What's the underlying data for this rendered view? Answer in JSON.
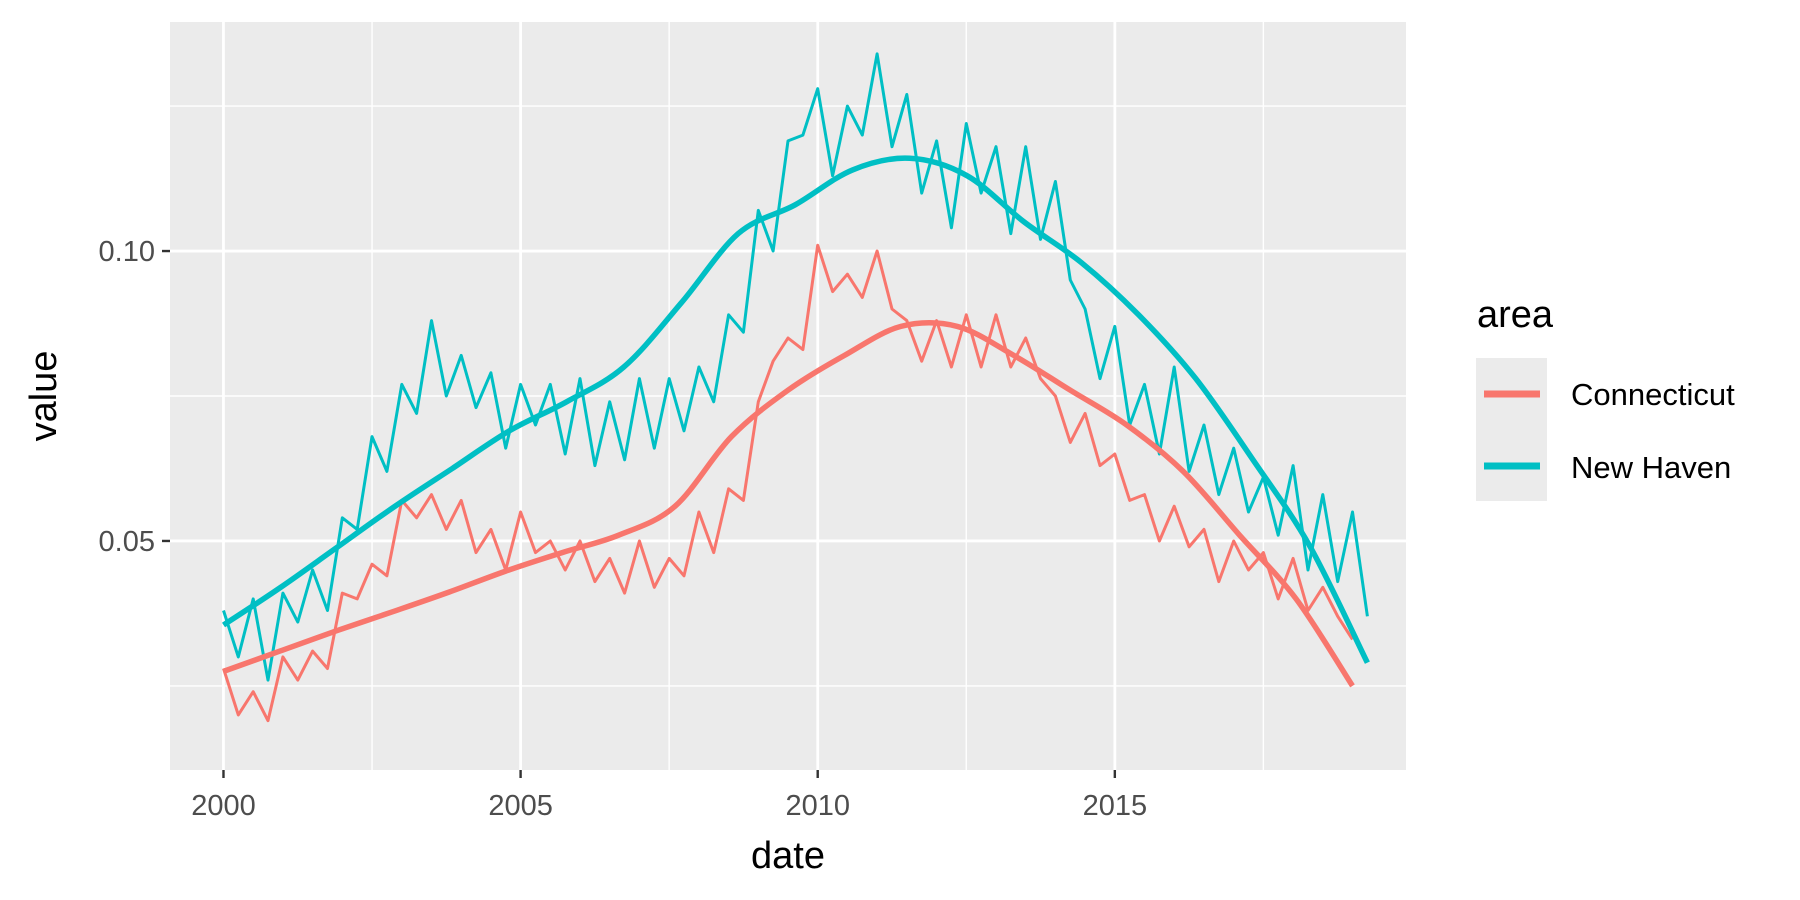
{
  "chart_data": {
    "type": "line",
    "xlabel": "date",
    "ylabel": "value",
    "xlim": [
      1999.1,
      2019.9
    ],
    "ylim": [
      0.0105,
      0.1395
    ],
    "x_ticks": [
      2000,
      2005,
      2010,
      2015
    ],
    "y_ticks": [
      0.05,
      0.1
    ],
    "y_tick_labels": [
      "0.05",
      "0.10"
    ],
    "grid": true,
    "background": "#ebebeb",
    "legend": {
      "title": "area",
      "position": "right"
    },
    "series": [
      {
        "name": "Connecticut",
        "color": "#f8766d",
        "x_start": 2000,
        "x_step": 0.25,
        "values": [
          0.028,
          0.02,
          0.024,
          0.019,
          0.03,
          0.026,
          0.031,
          0.028,
          0.041,
          0.04,
          0.046,
          0.044,
          0.057,
          0.054,
          0.058,
          0.052,
          0.057,
          0.048,
          0.052,
          0.045,
          0.055,
          0.048,
          0.05,
          0.045,
          0.05,
          0.043,
          0.047,
          0.041,
          0.05,
          0.042,
          0.047,
          0.044,
          0.055,
          0.048,
          0.059,
          0.057,
          0.074,
          0.081,
          0.085,
          0.083,
          0.101,
          0.093,
          0.096,
          0.092,
          0.1,
          0.09,
          0.088,
          0.081,
          0.088,
          0.08,
          0.089,
          0.08,
          0.089,
          0.08,
          0.085,
          0.078,
          0.075,
          0.067,
          0.072,
          0.063,
          0.065,
          0.057,
          0.058,
          0.05,
          0.056,
          0.049,
          0.052,
          0.043,
          0.05,
          0.045,
          0.048,
          0.04,
          0.047,
          0.038,
          0.042,
          0.037,
          0.033
        ],
        "trend": [
          0.0275,
          0.031,
          0.0345,
          0.0378,
          0.0412,
          0.0448,
          0.048,
          0.051,
          0.056,
          0.068,
          0.076,
          0.082,
          0.087,
          0.087,
          0.082,
          0.076,
          0.07,
          0.062,
          0.051,
          0.04,
          0.025
        ]
      },
      {
        "name": "New Haven",
        "color": "#00bfc4",
        "x_start": 2000,
        "x_step": 0.25,
        "values": [
          0.038,
          0.03,
          0.04,
          0.026,
          0.041,
          0.036,
          0.045,
          0.038,
          0.054,
          0.052,
          0.068,
          0.062,
          0.077,
          0.072,
          0.088,
          0.075,
          0.082,
          0.073,
          0.079,
          0.066,
          0.077,
          0.07,
          0.077,
          0.065,
          0.078,
          0.063,
          0.074,
          0.064,
          0.078,
          0.066,
          0.078,
          0.069,
          0.08,
          0.074,
          0.089,
          0.086,
          0.107,
          0.1,
          0.119,
          0.12,
          0.128,
          0.113,
          0.125,
          0.12,
          0.134,
          0.118,
          0.127,
          0.11,
          0.119,
          0.104,
          0.122,
          0.11,
          0.118,
          0.103,
          0.118,
          0.102,
          0.112,
          0.095,
          0.09,
          0.078,
          0.087,
          0.07,
          0.077,
          0.065,
          0.08,
          0.062,
          0.07,
          0.058,
          0.066,
          0.055,
          0.061,
          0.051,
          0.063,
          0.045,
          0.058,
          0.043,
          0.055,
          0.037
        ],
        "trend": [
          0.0355,
          0.042,
          0.049,
          0.056,
          0.0625,
          0.069,
          0.074,
          0.08,
          0.091,
          0.103,
          0.108,
          0.114,
          0.116,
          0.113,
          0.105,
          0.098,
          0.089,
          0.078,
          0.064,
          0.049,
          0.029
        ]
      }
    ]
  }
}
